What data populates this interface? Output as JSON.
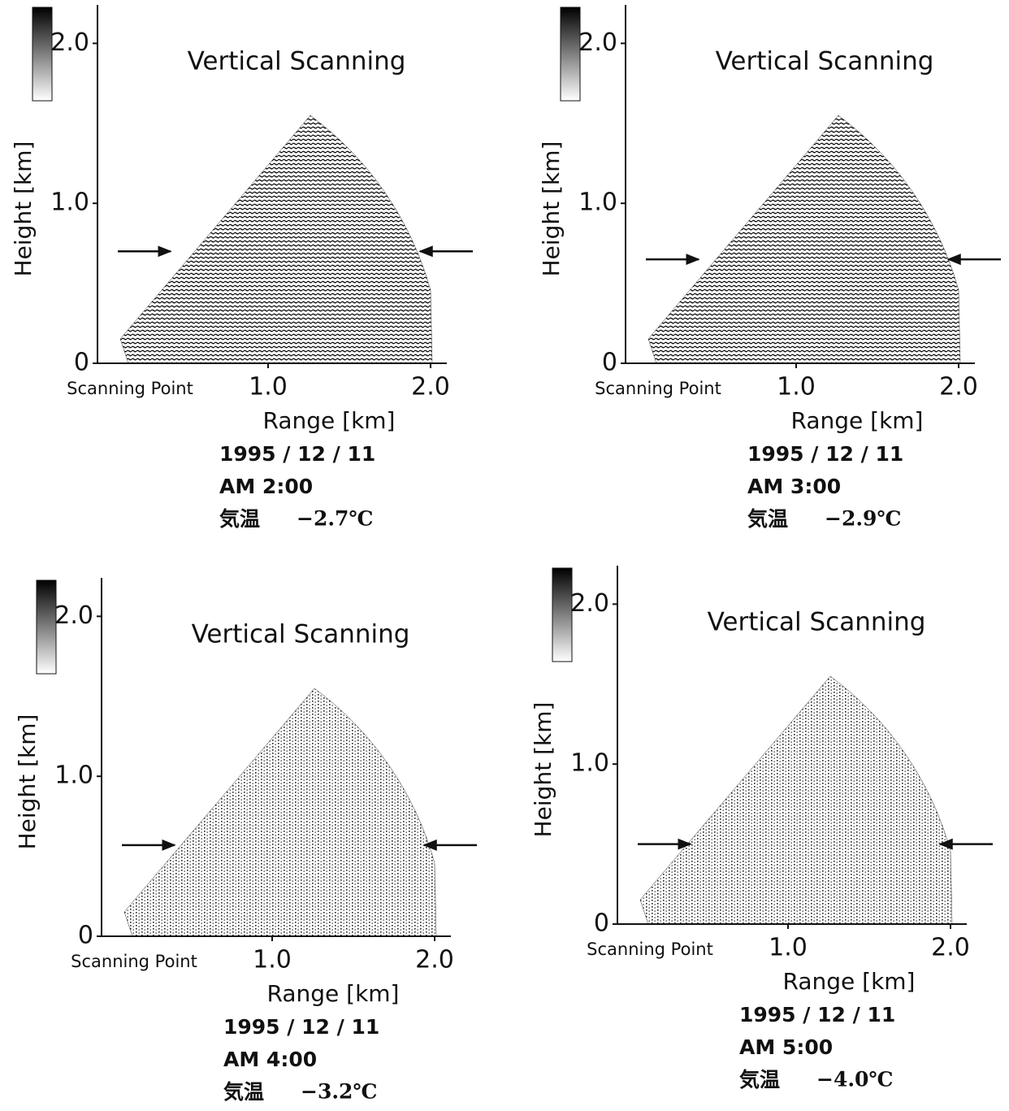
{
  "chart_data": [
    {
      "type": "scan",
      "title": "Vertical Scanning",
      "x_label": "Range [km]",
      "y_label": "Height [km]",
      "origin_label": "Scanning Point",
      "xlim": [
        -0.05,
        2.1
      ],
      "ylim": [
        0,
        2.2
      ],
      "xticks": [
        {
          "value": 1,
          "label": "1.0"
        },
        {
          "value": 2,
          "label": "2.0"
        }
      ],
      "yticks": [
        0,
        {
          "value": 1,
          "label": "1.0"
        },
        {
          "value": 2,
          "label": "2.0"
        }
      ],
      "arrow_height": 0.7,
      "date": "1995 / 12 / 11",
      "time": "AM 2:00",
      "temperature_label": "気温",
      "temperature": "−2.7℃"
    },
    {
      "type": "scan",
      "title": "Vertical Scanning",
      "x_label": "Range [km]",
      "y_label": "Height [km]",
      "origin_label": "Scanning Point",
      "xlim": [
        -0.05,
        2.1
      ],
      "ylim": [
        0,
        2.2
      ],
      "xticks": [
        {
          "value": 1,
          "label": "1.0"
        },
        {
          "value": 2,
          "label": "2.0"
        }
      ],
      "yticks": [
        0,
        {
          "value": 1,
          "label": "1.0"
        },
        {
          "value": 2,
          "label": "2.0"
        }
      ],
      "arrow_height": 0.65,
      "date": "1995 / 12 / 11",
      "time": "AM 3:00",
      "temperature_label": "気温",
      "temperature": "−2.9℃"
    },
    {
      "type": "scan",
      "title": "Vertical Scanning",
      "x_label": "Range [km]",
      "y_label": "Height [km]",
      "origin_label": "Scanning Point",
      "xlim": [
        -0.05,
        2.1
      ],
      "ylim": [
        0,
        2.2
      ],
      "xticks": [
        {
          "value": 1,
          "label": "1.0"
        },
        {
          "value": 2,
          "label": "2.0"
        }
      ],
      "yticks": [
        0,
        {
          "value": 1,
          "label": "1.0"
        },
        {
          "value": 2,
          "label": "2.0"
        }
      ],
      "arrow_height": 0.57,
      "date": "1995 / 12 / 11",
      "time": "AM 4:00",
      "temperature_label": "気温",
      "temperature": "−3.2℃"
    },
    {
      "type": "scan",
      "title": "Vertical Scanning",
      "x_label": "Range [km]",
      "y_label": "Height [km]",
      "origin_label": "Scanning Point",
      "xlim": [
        -0.05,
        2.1
      ],
      "ylim": [
        0,
        2.2
      ],
      "xticks": [
        {
          "value": 1,
          "label": "1.0"
        },
        {
          "value": 2,
          "label": "2.0"
        }
      ],
      "yticks": [
        0,
        {
          "value": 1,
          "label": "1.0"
        },
        {
          "value": 2,
          "label": "2.0"
        }
      ],
      "arrow_height": 0.5,
      "date": "1995 / 12 / 11",
      "time": "AM 5:00",
      "temperature_label": "気温",
      "temperature": "−4.0℃"
    }
  ]
}
